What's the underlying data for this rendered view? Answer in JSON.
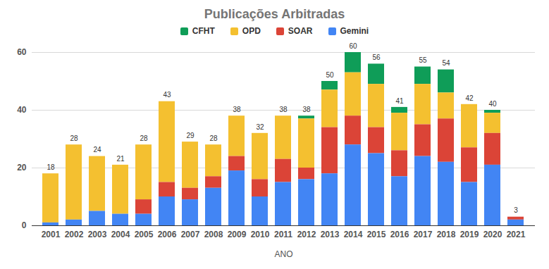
{
  "chart_data": {
    "type": "bar",
    "title": "Publicações Arbitradas",
    "x_label": "ANO",
    "stacked": true,
    "grid": true,
    "legend": "top",
    "categories": [
      "2001",
      "2002",
      "2003",
      "2004",
      "2005",
      "2006",
      "2007",
      "2008",
      "2009",
      "2010",
      "2011",
      "2012",
      "2013",
      "2014",
      "2015",
      "2016",
      "2017",
      "2018",
      "2019",
      "2020",
      "2021"
    ],
    "series": [
      {
        "name": "CFHT",
        "color": "#0f9d58",
        "values": [
          0,
          0,
          0,
          0,
          0,
          0,
          0,
          0,
          0,
          0,
          0,
          1,
          3,
          7,
          7,
          2,
          6,
          8,
          0,
          1,
          0
        ]
      },
      {
        "name": "OPD",
        "color": "#f4c030",
        "values": [
          17,
          26,
          19,
          17,
          19,
          28,
          16,
          11,
          14,
          16,
          15,
          17,
          13,
          15,
          15,
          13,
          14,
          9,
          15,
          7,
          0
        ]
      },
      {
        "name": "SOAR",
        "color": "#db4437",
        "values": [
          0,
          0,
          0,
          0,
          5,
          5,
          4,
          4,
          5,
          6,
          8,
          4,
          16,
          10,
          9,
          9,
          11,
          15,
          12,
          11,
          1
        ]
      },
      {
        "name": "Gemini",
        "color": "#4285f4",
        "values": [
          1,
          2,
          5,
          4,
          4,
          10,
          9,
          13,
          19,
          10,
          15,
          16,
          18,
          28,
          25,
          17,
          24,
          22,
          15,
          21,
          2
        ]
      }
    ],
    "totals": [
      18,
      28,
      24,
      21,
      28,
      43,
      29,
      28,
      38,
      32,
      38,
      38,
      50,
      60,
      56,
      41,
      55,
      54,
      42,
      40,
      3
    ],
    "ylim": [
      0,
      60
    ],
    "yticks": [
      0,
      20,
      40,
      60
    ]
  }
}
